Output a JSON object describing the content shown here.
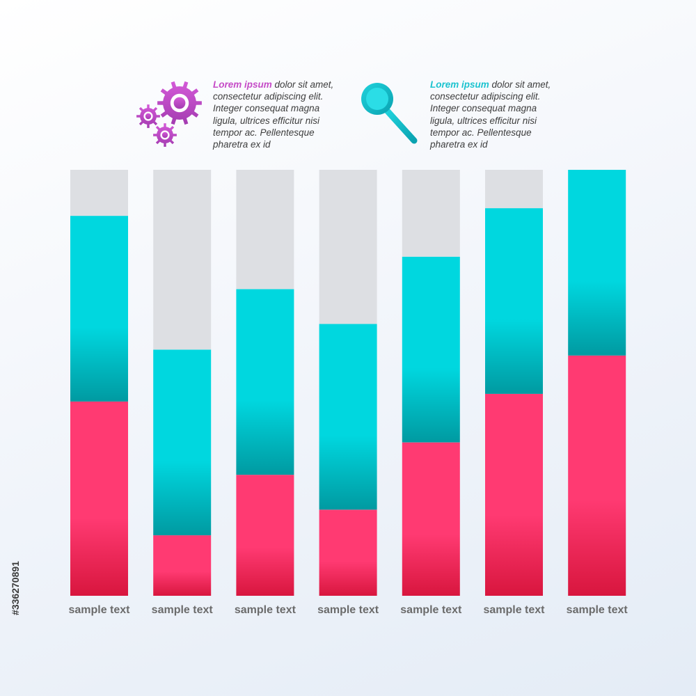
{
  "legend": [
    {
      "icon": "gears-icon",
      "color": "#c54bc7",
      "lead": "Lorem ipsum",
      "lines": [
        " dolor sit amet,",
        "consectetur adipiscing elit.",
        "Integer consequat magna",
        "ligula, ultrices efficitur nisi",
        "tempor ac. Pellentesque",
        "pharetra ex id"
      ]
    },
    {
      "icon": "magnifier-icon",
      "color": "#1cc3cf",
      "lead": "Lorem ipsum",
      "lines": [
        " dolor sit amet,",
        "consectetur adipiscing elit.",
        "Integer consequat magna",
        "ligula, ultrices efficitur nisi",
        "tempor ac. Pellentesque",
        "pharetra ex id"
      ]
    }
  ],
  "chart_data": {
    "type": "bar",
    "stacked": true,
    "categories": [
      "sample text",
      "sample text",
      "sample text",
      "sample text",
      "sample text",
      "sample text",
      "sample text"
    ],
    "series": [
      {
        "color": "#ff3a72",
        "values": [
          45.6,
          14.2,
          28.4,
          20.2,
          36.0,
          47.4,
          56.4
        ]
      },
      {
        "color": "#00d7df",
        "values": [
          43.6,
          43.6,
          43.6,
          43.6,
          43.6,
          43.6,
          43.6
        ]
      },
      {
        "color": "#dddfe3",
        "values": [
          10.8,
          42.2,
          28.0,
          36.2,
          20.4,
          9.0,
          0.0
        ]
      }
    ],
    "ylim": [
      0,
      100
    ]
  },
  "stock_id": "#336270891"
}
